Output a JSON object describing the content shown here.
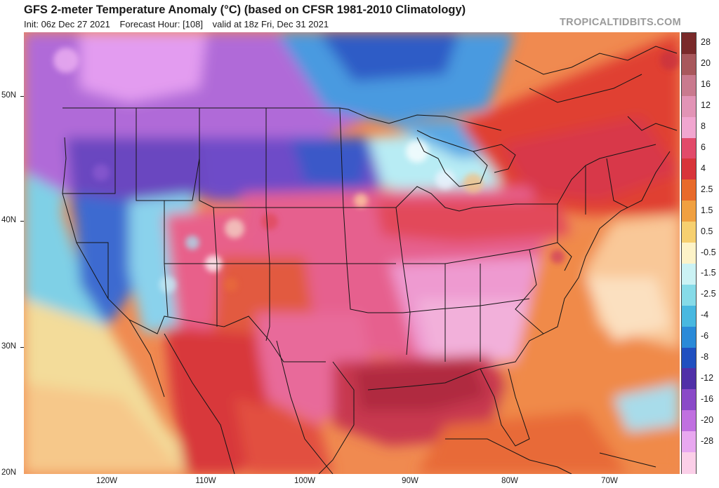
{
  "header": {
    "title": "GFS 2-meter Temperature Anomaly (°C) (based on CFSR 1981-2010 Climatology)",
    "init": "Init: 06z Dec 27 2021",
    "forecast_hour": "Forecast Hour: [108]",
    "valid": "valid at 18z Fri, Dec 31 2021",
    "brand": "TROPICALTIDBITS.COM"
  },
  "axes": {
    "lat_labels": [
      "50N",
      "40N",
      "30N",
      "20N"
    ],
    "lon_labels": [
      "120W",
      "110W",
      "100W",
      "90W",
      "80W",
      "70W"
    ]
  },
  "colorbar": {
    "labels": [
      "28",
      "20",
      "16",
      "12",
      "8",
      "6",
      "4",
      "2.5",
      "1.5",
      "0.5",
      "-0.5",
      "-1.5",
      "-2.5",
      "-4",
      "-6",
      "-8",
      "-12",
      "-16",
      "-20",
      "-28"
    ],
    "colors": [
      "#7a2a2a",
      "#a8585c",
      "#c97a8e",
      "#e294b6",
      "#f1a6d0",
      "#e24a6a",
      "#d8343a",
      "#e86a2a",
      "#f0a040",
      "#f6d070",
      "#fdf3c8",
      "#cbf2f4",
      "#86dbe8",
      "#48b8e0",
      "#2a8ad8",
      "#2050c0",
      "#5030a8",
      "#8a4ac8",
      "#c070e0",
      "#e8a8f0",
      "#fbcfe8"
    ]
  }
}
